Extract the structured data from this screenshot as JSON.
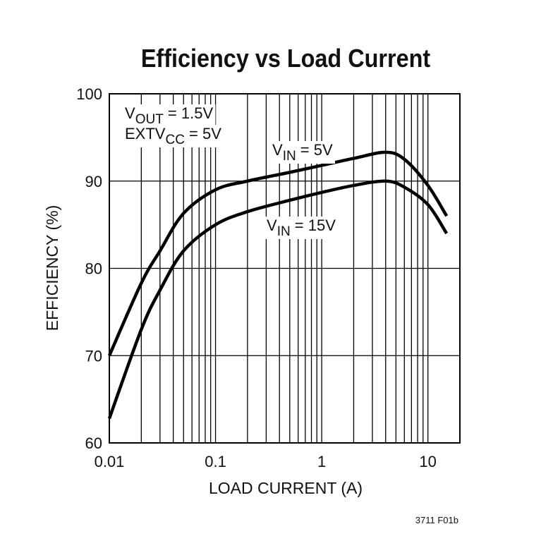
{
  "chart_data": {
    "type": "line",
    "title": "Efficiency vs Load Current",
    "x_label": "LOAD CURRENT (A)",
    "y_label": "EFFICIENCY (%)",
    "footnote": "3711 F01b",
    "x_log": true,
    "grid": true,
    "xlim": [
      0.01,
      20
    ],
    "xticks": [
      0.01,
      0.1,
      1,
      10
    ],
    "ylim": [
      60,
      100
    ],
    "yticks": [
      60,
      70,
      80,
      90,
      100
    ],
    "x": [
      0.01,
      0.02,
      0.03,
      0.05,
      0.1,
      0.2,
      0.5,
      1,
      2,
      4,
      6,
      10,
      15
    ],
    "series": [
      {
        "color": "#000000",
        "values": [
          70,
          78.3,
          82,
          86.3,
          89,
          90,
          91,
          91.8,
          92.6,
          93.3,
          92.5,
          89.5,
          86
        ]
      },
      {
        "color": "#000000",
        "values": [
          62.8,
          73,
          77.5,
          82,
          85,
          86.5,
          87.8,
          88.7,
          89.5,
          90,
          89.3,
          87.3,
          84
        ]
      }
    ],
    "annotations": [
      {
        "parts": [
          "V",
          "OUT",
          " = 1.5V"
        ]
      },
      {
        "parts": [
          "EXTV",
          "CC",
          " = 5V"
        ]
      },
      {
        "parts": [
          "V",
          "IN",
          " = 5V"
        ]
      },
      {
        "parts": [
          "V",
          "IN",
          " = 15V"
        ]
      }
    ]
  }
}
